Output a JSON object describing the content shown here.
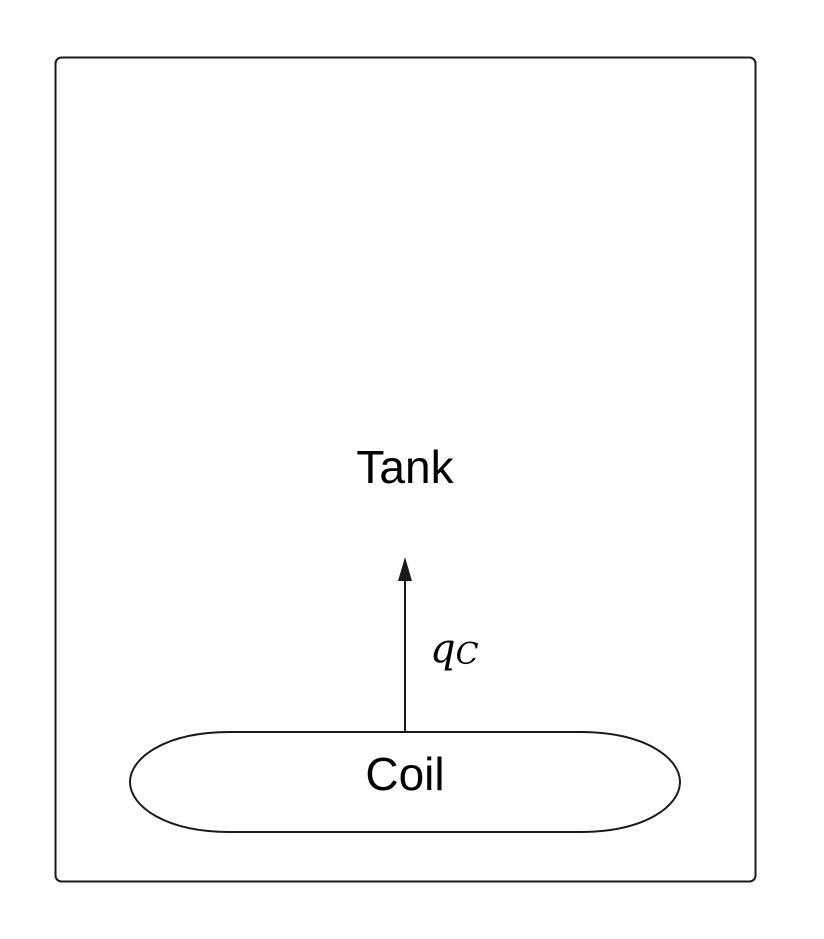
{
  "diagram": {
    "tank_label": "Tank",
    "coil_label": "Coil",
    "heat_flow": {
      "symbol": "q",
      "subscript": "C"
    }
  },
  "colors": {
    "stroke": "#1a1a1a",
    "text": "#000000",
    "background": "#ffffff"
  }
}
